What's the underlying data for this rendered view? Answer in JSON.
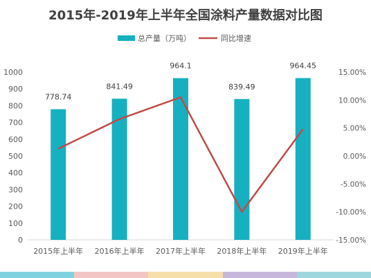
{
  "chart_data": {
    "type": "bar",
    "title": "2015年-2019年上半年全国涂料产量数据对比图",
    "categories": [
      "2015年上半年",
      "2016年上半年",
      "2017年上半年",
      "2018年上半年",
      "2019年上半年"
    ],
    "series": [
      {
        "name": "总产量（万吨）",
        "type": "bar",
        "axis": "left",
        "values": [
          778.74,
          841.49,
          964.1,
          839.49,
          964.45
        ],
        "labels": [
          "778.74",
          "841.49",
          "964.1",
          "839.49",
          "964.45"
        ],
        "color": "#17B0C0"
      },
      {
        "name": "同比增速",
        "type": "line",
        "axis": "right",
        "values": [
          1.3,
          6.6,
          10.5,
          -10.0,
          4.8
        ],
        "color": "#BE4B48"
      }
    ],
    "ylim": [
      0,
      1000
    ],
    "y_ticks": [
      "0",
      "100",
      "200",
      "300",
      "400",
      "500",
      "600",
      "700",
      "800",
      "900",
      "1000"
    ],
    "y2lim": [
      -15,
      15
    ],
    "y2_ticks": [
      "-15.00%",
      "-10.00%",
      "-5.00%",
      "0.00%",
      "5.00%",
      "10.00%",
      "15.00%"
    ],
    "grid": false,
    "legend_position": "top"
  },
  "bottom_strip_colors": [
    "#7fd3e0",
    "#f3c5c5",
    "#f6dfa8",
    "#c8b7dc",
    "#9fd7df"
  ]
}
